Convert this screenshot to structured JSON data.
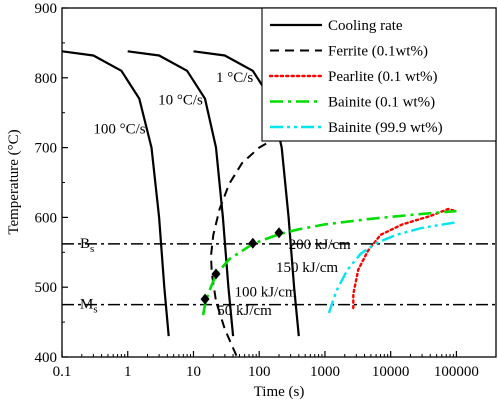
{
  "chart_data": {
    "type": "line",
    "xlabel": "Time (s)",
    "ylabel": "Temperature (°C)",
    "xscale": "log",
    "xlim": [
      0.1,
      400000
    ],
    "ylim": [
      400,
      900
    ],
    "x_ticks": [
      0.1,
      1,
      10,
      100,
      1000,
      10000,
      100000
    ],
    "x_tick_labels": [
      "0.1",
      "1",
      "10",
      "100",
      "1000",
      "10000",
      "100000"
    ],
    "y_ticks": [
      400,
      500,
      600,
      700,
      800,
      900
    ],
    "y_tick_labels": [
      "400",
      "500",
      "600",
      "700",
      "800",
      "900"
    ],
    "legend_position": "top-right",
    "series": [
      {
        "name": "Cooling rate",
        "style": "solid",
        "color": "#000000",
        "width": 2.2
      },
      {
        "name": "Ferrite (0.1wt%)",
        "style": "dash",
        "color": "#000000",
        "width": 2.0
      },
      {
        "name": "Pearlite (0.1 wt%)",
        "style": "dot",
        "color": "#ff0000",
        "width": 2.4
      },
      {
        "name": "Bainite (0.1 wt%)",
        "style": "dashdot",
        "color": "#00dd00",
        "width": 2.6
      },
      {
        "name": "Bainite (99.9 wt%)",
        "style": "dashdotdot",
        "color": "#00e5ee",
        "width": 2.4
      }
    ],
    "cooling_curves": [
      {
        "label": "100 °C/s",
        "points": [
          [
            0.1,
            838
          ],
          [
            0.3,
            832
          ],
          [
            0.8,
            810
          ],
          [
            1.5,
            770
          ],
          [
            2.3,
            700
          ],
          [
            3.0,
            600
          ],
          [
            3.6,
            500
          ],
          [
            4.2,
            430
          ]
        ]
      },
      {
        "label": "10 °C/s",
        "points": [
          [
            1.0,
            838
          ],
          [
            3.0,
            832
          ],
          [
            8.0,
            810
          ],
          [
            15,
            770
          ],
          [
            22,
            700
          ],
          [
            28,
            600
          ],
          [
            34,
            500
          ],
          [
            40,
            430
          ]
        ]
      },
      {
        "label": "1 °C/s",
        "points": [
          [
            10,
            838
          ],
          [
            30,
            832
          ],
          [
            80,
            810
          ],
          [
            150,
            770
          ],
          [
            220,
            700
          ],
          [
            280,
            600
          ],
          [
            340,
            500
          ],
          [
            400,
            430
          ]
        ]
      }
    ],
    "ferrite_curve": [
      [
        45,
        402
      ],
      [
        30,
        440
      ],
      [
        22,
        480
      ],
      [
        19,
        520
      ],
      [
        18.5,
        545
      ],
      [
        20,
        575
      ],
      [
        25,
        612
      ],
      [
        35,
        648
      ],
      [
        55,
        678
      ],
      [
        100,
        700
      ],
      [
        200,
        716
      ],
      [
        300,
        720
      ]
    ],
    "pearlite_curve": [
      [
        2700,
        470
      ],
      [
        2700,
        490
      ],
      [
        3200,
        525
      ],
      [
        4500,
        552
      ],
      [
        7000,
        575
      ],
      [
        15000,
        590
      ],
      [
        40000,
        602
      ],
      [
        75000,
        612
      ],
      [
        90000,
        610
      ]
    ],
    "bainite_01_curve": [
      [
        14,
        460
      ],
      [
        15,
        475
      ],
      [
        17,
        492
      ],
      [
        22,
        518
      ],
      [
        35,
        540
      ],
      [
        80,
        562
      ],
      [
        200,
        576
      ],
      [
        400,
        583
      ],
      [
        1000,
        590
      ],
      [
        5000,
        598
      ],
      [
        30000,
        605
      ],
      [
        100000,
        609
      ]
    ],
    "bainite_999_curve": [
      [
        1150,
        463
      ],
      [
        1500,
        495
      ],
      [
        2200,
        525
      ],
      [
        3500,
        548
      ],
      [
        6000,
        563
      ],
      [
        12000,
        575
      ],
      [
        30000,
        585
      ],
      [
        100000,
        593
      ]
    ],
    "markers": [
      [
        15,
        483
      ],
      [
        22,
        519
      ],
      [
        80,
        563
      ],
      [
        200,
        578
      ]
    ],
    "hlines": [
      {
        "y": 562,
        "label": "B",
        "sub": "s"
      },
      {
        "y": 475,
        "label": "M",
        "sub": "s"
      }
    ],
    "annotations": [
      {
        "text": "100 °C/s",
        "x": 0.3,
        "y": 720
      },
      {
        "text": "10 °C/s",
        "x": 2.9,
        "y": 762
      },
      {
        "text": "1 °C/s",
        "x": 22,
        "y": 794
      },
      {
        "text": "200 kJ/cm",
        "x": 280,
        "y": 555
      },
      {
        "text": "150 kJ/cm",
        "x": 180,
        "y": 522
      },
      {
        "text": "100 kJ/cm",
        "x": 42,
        "y": 487
      },
      {
        "text": "50 kJ/cm",
        "x": 23,
        "y": 460
      }
    ]
  }
}
